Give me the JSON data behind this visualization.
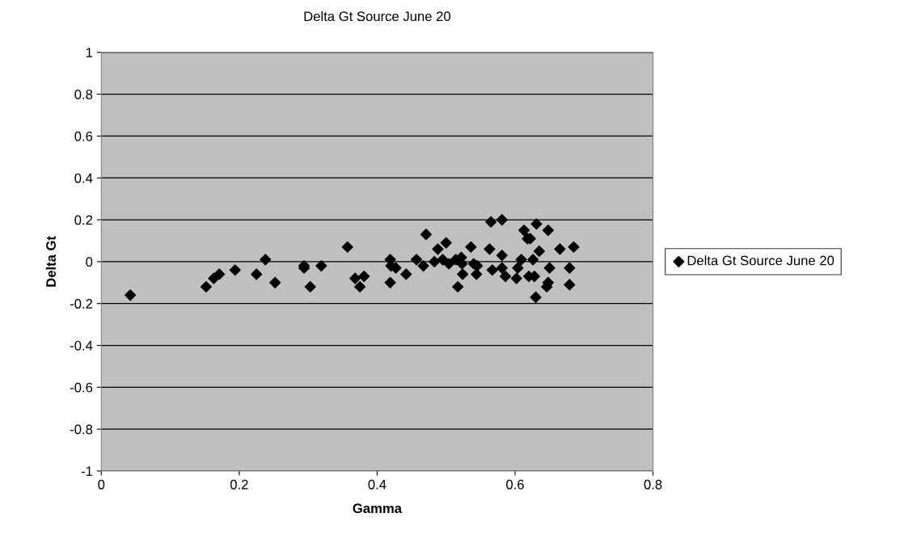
{
  "chart_data": {
    "type": "scatter",
    "title": "Delta Gt Source June 20",
    "xlabel": "Gamma",
    "ylabel": "Delta Gt",
    "x": [
      0.042,
      0.152,
      0.163,
      0.171,
      0.194,
      0.225,
      0.238,
      0.252,
      0.294,
      0.294,
      0.303,
      0.319,
      0.357,
      0.368,
      0.375,
      0.381,
      0.419,
      0.42,
      0.427,
      0.419,
      0.442,
      0.457,
      0.471,
      0.467,
      0.483,
      0.488,
      0.495,
      0.5,
      0.504,
      0.514,
      0.522,
      0.523,
      0.517,
      0.524,
      0.536,
      0.54,
      0.545,
      0.544,
      0.563,
      0.565,
      0.567,
      0.581,
      0.581,
      0.581,
      0.586,
      0.602,
      0.604,
      0.609,
      0.613,
      0.618,
      0.622,
      0.62,
      0.628,
      0.626,
      0.631,
      0.63,
      0.635,
      0.648,
      0.65,
      0.648,
      0.646,
      0.665,
      0.679,
      0.679,
      0.685
    ],
    "series": [
      {
        "name": "Delta Gt Source June 20",
        "color": "#000000",
        "values": [
          -0.16,
          -0.12,
          -0.08,
          -0.06,
          -0.04,
          -0.06,
          0.01,
          -0.1,
          -0.03,
          -0.02,
          -0.12,
          -0.02,
          0.07,
          -0.08,
          -0.12,
          -0.07,
          0.01,
          -0.02,
          -0.03,
          -0.1,
          -0.06,
          0.01,
          0.13,
          -0.02,
          0.0,
          0.06,
          0.01,
          0.09,
          -0.01,
          0.01,
          0.02,
          -0.01,
          -0.12,
          -0.06,
          0.07,
          -0.01,
          -0.02,
          -0.06,
          0.06,
          0.19,
          -0.04,
          0.2,
          0.03,
          -0.03,
          -0.07,
          -0.08,
          -0.03,
          0.01,
          0.15,
          0.11,
          0.11,
          -0.07,
          -0.07,
          0.01,
          0.18,
          -0.17,
          0.05,
          0.15,
          -0.03,
          -0.1,
          -0.12,
          0.06,
          -0.03,
          -0.11,
          0.07
        ]
      }
    ],
    "xlim": [
      0,
      0.8
    ],
    "xticks": [
      0,
      0.2,
      0.4,
      0.6,
      0.8
    ],
    "ylim": [
      -1,
      1
    ],
    "yticks": [
      -1,
      -0.8,
      -0.6,
      -0.4,
      -0.2,
      0,
      0.2,
      0.4,
      0.6,
      0.8,
      1
    ],
    "grid": "y",
    "legend": "right",
    "marker": "diamond"
  }
}
